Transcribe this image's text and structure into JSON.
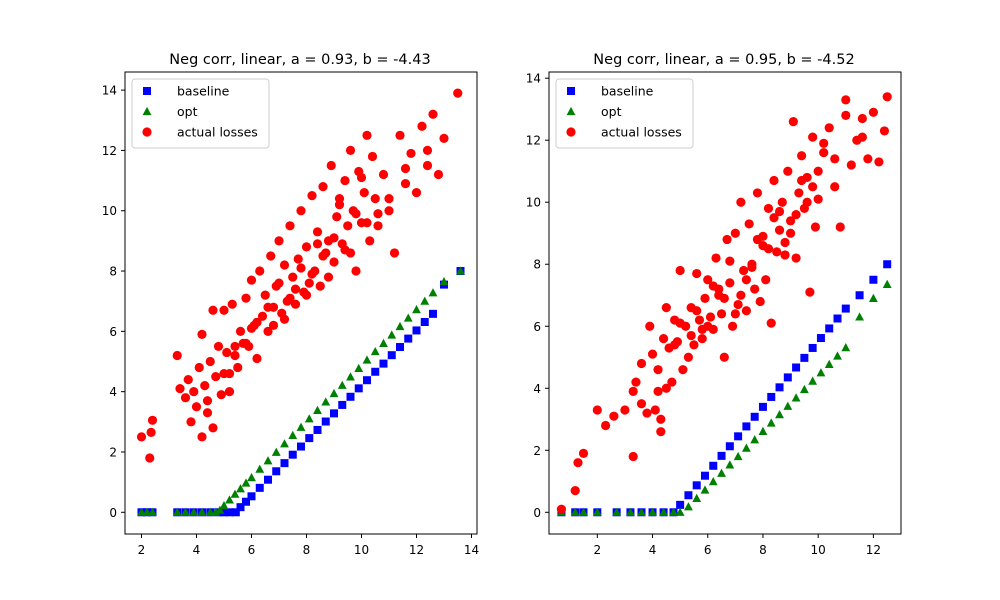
{
  "chart_data": [
    {
      "type": "scatter",
      "title": "Neg corr, linear, a = 0.93, b = -4.43",
      "xlabel": "",
      "ylabel": "",
      "xlim": [
        1.4,
        14.2
      ],
      "ylim": [
        -0.72,
        14.6
      ],
      "xticks": [
        2,
        4,
        6,
        8,
        10,
        12,
        14
      ],
      "yticks": [
        0,
        2,
        4,
        6,
        8,
        10,
        12,
        14
      ],
      "grid": false,
      "legend_position": "top-left",
      "series": [
        {
          "name": "baseline",
          "marker": "square",
          "color": "#0000ff",
          "x": [
            2.0,
            2.2,
            2.4,
            3.3,
            3.6,
            3.9,
            4.2,
            4.5,
            4.8,
            5.0,
            5.2,
            5.43,
            5.6,
            5.8,
            6.0,
            6.3,
            6.6,
            6.9,
            7.2,
            7.5,
            7.8,
            8.1,
            8.4,
            8.7,
            9.0,
            9.3,
            9.6,
            9.9,
            10.2,
            10.5,
            10.8,
            11.1,
            11.4,
            11.7,
            12.0,
            12.3,
            12.6,
            13.0,
            13.6
          ],
          "y": [
            0.0,
            0.0,
            0.0,
            0.0,
            0.0,
            0.0,
            0.0,
            0.0,
            0.0,
            0.0,
            0.0,
            0.0,
            0.17,
            0.35,
            0.53,
            0.81,
            1.08,
            1.36,
            1.63,
            1.91,
            2.18,
            2.46,
            2.73,
            3.01,
            3.28,
            3.56,
            3.83,
            4.11,
            4.38,
            4.66,
            4.93,
            5.21,
            5.48,
            5.76,
            6.03,
            6.31,
            6.58,
            7.55,
            8.0
          ]
        },
        {
          "name": "opt",
          "marker": "triangle",
          "color": "#008000",
          "x": [
            2.0,
            2.2,
            2.4,
            3.3,
            3.6,
            3.9,
            4.2,
            4.5,
            4.7,
            4.85,
            5.0,
            5.2,
            5.4,
            5.6,
            5.8,
            6.0,
            6.3,
            6.6,
            6.9,
            7.2,
            7.5,
            7.8,
            8.1,
            8.4,
            8.7,
            9.0,
            9.3,
            9.6,
            9.9,
            10.2,
            10.5,
            10.8,
            11.1,
            11.4,
            11.7,
            12.0,
            12.3,
            12.6,
            13.0,
            13.6
          ],
          "y": [
            0.0,
            0.0,
            0.0,
            0.0,
            0.0,
            0.0,
            0.0,
            0.0,
            0.0,
            0.07,
            0.22,
            0.41,
            0.6,
            0.78,
            0.97,
            1.15,
            1.43,
            1.71,
            1.99,
            2.27,
            2.55,
            2.82,
            3.1,
            3.38,
            3.66,
            3.94,
            4.21,
            4.49,
            4.77,
            5.05,
            5.33,
            5.6,
            5.88,
            6.16,
            6.44,
            6.72,
            7.0,
            7.28,
            7.65,
            8.0
          ]
        },
        {
          "name": "actual losses",
          "marker": "circle",
          "color": "#ff0000",
          "x": [
            2.0,
            2.3,
            2.35,
            2.4,
            3.3,
            3.4,
            3.6,
            3.7,
            3.8,
            3.9,
            4.0,
            4.1,
            4.2,
            4.3,
            4.4,
            4.5,
            4.6,
            4.7,
            4.8,
            4.9,
            5.0,
            5.0,
            5.1,
            5.2,
            5.3,
            5.4,
            5.5,
            5.6,
            5.7,
            5.8,
            5.9,
            6.0,
            6.1,
            6.2,
            6.3,
            6.4,
            6.5,
            6.6,
            6.7,
            6.8,
            6.9,
            7.0,
            7.1,
            7.2,
            7.3,
            7.4,
            7.5,
            7.6,
            7.7,
            7.8,
            7.9,
            8.0,
            8.1,
            8.2,
            8.3,
            8.4,
            8.5,
            8.6,
            8.7,
            8.8,
            8.9,
            9.0,
            9.1,
            9.2,
            9.3,
            9.4,
            9.5,
            9.6,
            9.7,
            9.8,
            9.9,
            10.0,
            10.1,
            10.2,
            10.3,
            10.4,
            10.5,
            10.6,
            10.8,
            11.0,
            11.2,
            11.4,
            11.6,
            11.8,
            12.0,
            12.2,
            12.4,
            12.6,
            12.8,
            13.0,
            13.5,
            5.8,
            6.2,
            6.6,
            7.0,
            7.4,
            7.8,
            8.2,
            8.6,
            9.0,
            9.4,
            9.8,
            10.2,
            4.2,
            4.6,
            5.4,
            6.8,
            7.6,
            8.4,
            9.2,
            10.0,
            11.0,
            12.4,
            4.4,
            5.2,
            6.0,
            7.2,
            8.0,
            8.8,
            9.6,
            10.6,
            11.6
          ],
          "y": [
            2.5,
            1.8,
            2.65,
            3.05,
            5.2,
            4.1,
            3.8,
            4.4,
            3.0,
            4.0,
            3.5,
            4.8,
            2.5,
            4.2,
            3.3,
            5.0,
            2.8,
            4.5,
            5.5,
            3.9,
            4.6,
            6.7,
            5.3,
            4.0,
            6.9,
            5.5,
            4.8,
            6.0,
            5.6,
            7.1,
            5.5,
            7.7,
            6.2,
            5.1,
            8.0,
            6.5,
            7.2,
            6.0,
            8.5,
            6.8,
            7.5,
            9.0,
            6.6,
            8.2,
            7.0,
            9.5,
            7.8,
            6.9,
            8.4,
            10.0,
            7.3,
            8.8,
            7.6,
            10.5,
            8.0,
            9.3,
            7.5,
            10.8,
            8.6,
            9.0,
            11.5,
            8.3,
            9.8,
            10.2,
            8.9,
            11.0,
            9.5,
            12.0,
            10.0,
            8.0,
            11.3,
            9.6,
            10.6,
            12.5,
            9.0,
            11.8,
            10.4,
            9.5,
            11.2,
            10.0,
            8.6,
            12.5,
            11.4,
            11.9,
            10.6,
            12.8,
            12.0,
            13.2,
            11.2,
            12.4,
            13.9,
            5.6,
            6.3,
            6.8,
            7.6,
            7.1,
            8.1,
            7.9,
            8.5,
            9.1,
            8.7,
            9.9,
            9.6,
            5.9,
            6.7,
            5.2,
            6.2,
            7.4,
            8.9,
            10.4,
            11.1,
            10.4,
            11.5,
            3.7,
            4.6,
            6.1,
            6.4,
            7.2,
            7.8,
            8.6,
            9.9,
            10.9
          ]
        }
      ]
    },
    {
      "type": "scatter",
      "title": "Neg corr, linear, a = 0.95, b = -4.52",
      "xlabel": "",
      "ylabel": "",
      "xlim": [
        0.25,
        13.0
      ],
      "ylim": [
        -0.7,
        14.2
      ],
      "xticks": [
        2,
        4,
        6,
        8,
        10,
        12
      ],
      "yticks": [
        0,
        2,
        4,
        6,
        8,
        10,
        12,
        14
      ],
      "grid": false,
      "legend_position": "top-left",
      "series": [
        {
          "name": "baseline",
          "marker": "square",
          "color": "#0000ff",
          "x": [
            0.7,
            1.2,
            1.5,
            2.0,
            2.7,
            3.2,
            3.6,
            4.0,
            4.4,
            4.76,
            5.0,
            5.3,
            5.6,
            5.9,
            6.2,
            6.5,
            6.8,
            7.1,
            7.4,
            7.7,
            8.0,
            8.3,
            8.6,
            8.9,
            9.2,
            9.5,
            9.8,
            10.1,
            10.4,
            10.7,
            11.0,
            11.5,
            12.0,
            12.5
          ],
          "y": [
            0.0,
            0.0,
            0.0,
            0.0,
            0.0,
            0.0,
            0.0,
            0.0,
            0.0,
            0.0,
            0.24,
            0.55,
            0.87,
            1.18,
            1.5,
            1.82,
            2.13,
            2.45,
            2.77,
            3.08,
            3.4,
            3.72,
            4.03,
            4.35,
            4.67,
            4.98,
            5.3,
            5.62,
            5.93,
            6.25,
            6.57,
            7.0,
            7.5,
            8.0
          ]
        },
        {
          "name": "opt",
          "marker": "triangle",
          "color": "#008000",
          "x": [
            0.7,
            1.2,
            1.5,
            2.0,
            2.7,
            3.2,
            3.6,
            4.0,
            4.4,
            4.76,
            5.0,
            5.3,
            5.6,
            5.9,
            6.2,
            6.5,
            6.8,
            7.1,
            7.4,
            7.7,
            8.0,
            8.3,
            8.6,
            8.9,
            9.2,
            9.5,
            9.8,
            10.1,
            10.4,
            10.7,
            11.0,
            11.5,
            12.0,
            12.5
          ],
          "y": [
            0.0,
            0.0,
            0.0,
            0.0,
            0.0,
            0.0,
            0.0,
            0.0,
            0.0,
            0.0,
            0.0,
            0.18,
            0.45,
            0.72,
            0.99,
            1.26,
            1.53,
            1.8,
            2.07,
            2.34,
            2.61,
            2.88,
            3.15,
            3.42,
            3.69,
            3.96,
            4.23,
            4.5,
            4.77,
            5.04,
            5.31,
            6.3,
            6.9,
            7.35
          ]
        },
        {
          "name": "actual losses",
          "marker": "circle",
          "color": "#ff0000",
          "x": [
            0.7,
            1.2,
            1.3,
            1.5,
            2.0,
            2.3,
            2.6,
            3.0,
            3.3,
            3.3,
            3.4,
            3.6,
            3.8,
            3.9,
            4.0,
            4.1,
            4.2,
            4.3,
            4.3,
            4.4,
            4.5,
            4.5,
            4.6,
            4.7,
            4.8,
            4.9,
            5.0,
            5.1,
            5.2,
            5.3,
            5.4,
            5.5,
            5.6,
            5.7,
            5.8,
            5.9,
            6.0,
            6.1,
            6.2,
            6.3,
            6.4,
            6.5,
            6.6,
            6.7,
            6.8,
            6.9,
            7.0,
            7.1,
            7.2,
            7.3,
            7.4,
            7.5,
            7.6,
            7.7,
            7.8,
            7.9,
            8.0,
            8.1,
            8.2,
            8.3,
            8.4,
            8.5,
            8.6,
            8.7,
            8.8,
            8.9,
            9.0,
            9.1,
            9.2,
            9.3,
            9.4,
            9.5,
            9.6,
            9.7,
            9.8,
            9.9,
            10.0,
            10.2,
            10.4,
            10.6,
            10.8,
            11.0,
            11.2,
            11.4,
            11.6,
            11.8,
            12.0,
            12.2,
            12.4,
            12.5,
            5.0,
            5.6,
            6.2,
            6.8,
            7.2,
            7.6,
            8.0,
            8.4,
            8.8,
            9.2,
            9.6,
            10.0,
            3.6,
            4.2,
            5.4,
            6.0,
            6.6,
            7.4,
            8.2,
            9.0,
            9.8,
            10.6,
            11.6,
            4.8,
            5.8,
            6.4,
            7.0,
            7.8,
            8.6,
            9.4,
            10.2,
            11.0
          ],
          "y": [
            0.1,
            0.7,
            1.6,
            1.9,
            3.3,
            2.8,
            3.1,
            3.3,
            3.9,
            1.8,
            4.2,
            3.5,
            3.2,
            6.0,
            5.1,
            3.3,
            4.6,
            2.6,
            3.0,
            5.6,
            6.6,
            4.0,
            5.3,
            4.2,
            6.2,
            5.5,
            7.8,
            4.6,
            6.0,
            5.0,
            6.6,
            5.4,
            7.7,
            6.2,
            5.6,
            6.9,
            7.5,
            6.3,
            5.9,
            8.2,
            7.0,
            6.4,
            5.0,
            8.8,
            7.4,
            6.0,
            9.0,
            6.7,
            10.0,
            7.8,
            6.5,
            9.3,
            8.0,
            7.2,
            10.3,
            6.8,
            8.6,
            7.5,
            9.8,
            6.1,
            10.7,
            8.4,
            9.1,
            10.0,
            8.7,
            11.0,
            9.4,
            12.6,
            8.2,
            10.3,
            11.5,
            9.8,
            10.8,
            7.1,
            12.1,
            9.2,
            10.1,
            11.6,
            12.4,
            10.5,
            9.2,
            13.3,
            11.2,
            12.0,
            12.7,
            11.4,
            12.9,
            11.3,
            12.3,
            13.4,
            6.1,
            6.5,
            7.3,
            8.1,
            7.0,
            7.9,
            8.9,
            9.5,
            8.3,
            9.6,
            10.0,
            11.0,
            4.8,
            3.9,
            5.7,
            6.0,
            6.9,
            7.5,
            8.5,
            9.0,
            10.5,
            11.4,
            12.1,
            5.4,
            5.9,
            7.2,
            6.4,
            8.8,
            9.7,
            10.7,
            11.9,
            12.8
          ]
        }
      ]
    }
  ]
}
